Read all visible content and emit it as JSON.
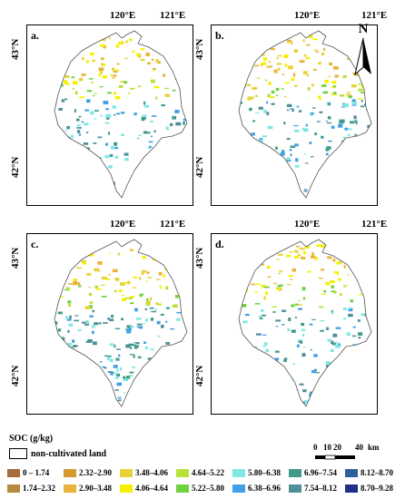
{
  "panels": [
    {
      "id": "a",
      "label": "a.",
      "lon_ticks": [
        "120°E",
        "121°E"
      ],
      "lat_ticks": [
        "43°N",
        "42°N"
      ],
      "north": true
    },
    {
      "id": "b",
      "label": "b.",
      "lon_ticks": [
        "120°E",
        "121°E"
      ],
      "lat_ticks": [
        "43°N",
        "42°N"
      ],
      "north": true
    },
    {
      "id": "c",
      "label": "c.",
      "lon_ticks": [
        "120°E",
        "121°E"
      ],
      "lat_ticks": [
        "43°N",
        "42°N"
      ],
      "north": false
    },
    {
      "id": "d",
      "label": "d.",
      "lon_ticks": [
        "120°E",
        "121°E"
      ],
      "lat_ticks": [
        "43°N",
        "42°N"
      ],
      "north": false
    }
  ],
  "north_label": "N",
  "legend": {
    "title": "SOC (g/kg)",
    "noncultivated": "non-cultivated land",
    "classes": [
      {
        "label": "0 – 1.74",
        "color": "#a86b3c"
      },
      {
        "label": "1.74–2.32",
        "color": "#b98a3e"
      },
      {
        "label": "2.32–2.90",
        "color": "#d39a30"
      },
      {
        "label": "2.90–3.48",
        "color": "#e8b43a"
      },
      {
        "label": "3.48–4.06",
        "color": "#e8d23a"
      },
      {
        "label": "4.06–4.64",
        "color": "#f5f000"
      },
      {
        "label": "4.64–5.22",
        "color": "#b6e23a"
      },
      {
        "label": "5.22–5.80",
        "color": "#6fd13f"
      },
      {
        "label": "5.80–6.38",
        "color": "#7fe8e2"
      },
      {
        "label": "6.38–6.96",
        "color": "#3fa0e8"
      },
      {
        "label": "6.96–7.54",
        "color": "#3f9a8a"
      },
      {
        "label": "7.54–8.12",
        "color": "#4f8f9a"
      },
      {
        "label": "8.12–8.70",
        "color": "#2f5f9a"
      },
      {
        "label": "8.70–9.28",
        "color": "#1f2f8a"
      }
    ]
  },
  "scale": {
    "ticks": [
      "0",
      "10",
      "20",
      "40"
    ],
    "unit": "km"
  }
}
